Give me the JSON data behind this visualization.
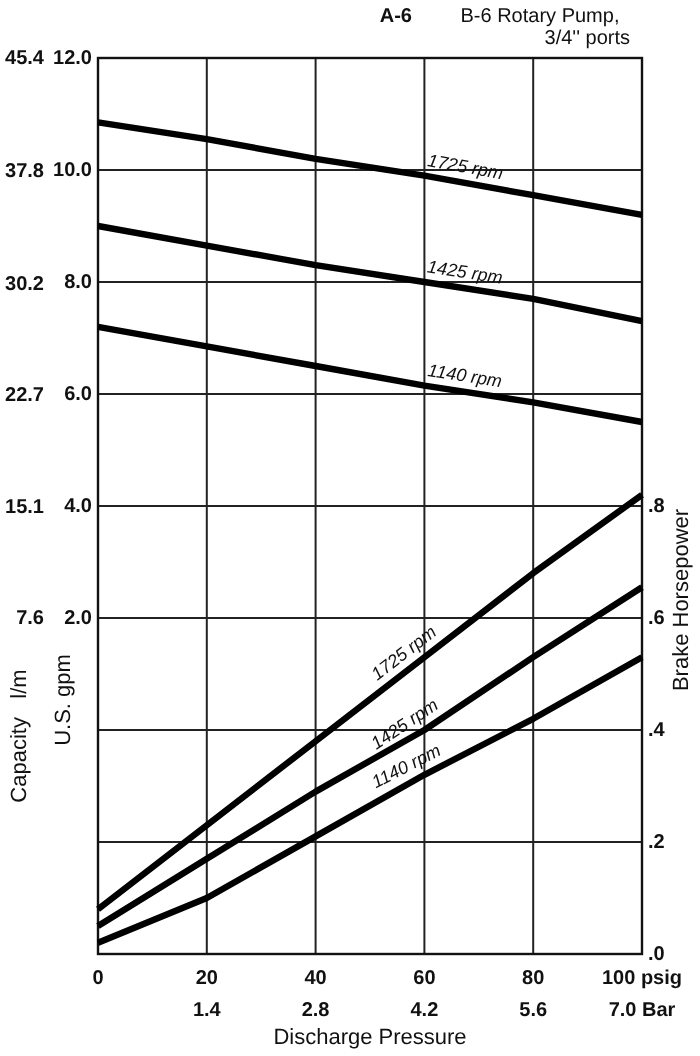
{
  "chart_data": {
    "type": "line",
    "title": "A-6",
    "subtitle": "B-6 Rotary Pump,\n3/4'' ports",
    "xlabel": "Discharge Pressure",
    "ylabel": "U.S. gpm",
    "y2label": "Brake Horsepower",
    "y3label": "Capacity   l/m",
    "x": [
      0,
      20,
      40,
      60,
      80,
      100
    ],
    "xlim": [
      0,
      100
    ],
    "xticks": [
      0,
      20,
      40,
      60,
      80,
      {
        "value": 100,
        "label": "100 psig"
      }
    ],
    "x2lim": [
      0,
      7.0
    ],
    "x2ticks": [
      1.4,
      2.8,
      4.2,
      5.6,
      {
        "value": 7.0,
        "label": "7.0 Bar"
      }
    ],
    "ylim": [
      -4,
      12
    ],
    "yticks": [
      {
        "value": -2,
        "label": null
      },
      {
        "value": 0,
        "label": null
      },
      {
        "value": 2,
        "label": "2.0"
      },
      {
        "value": 4,
        "label": "4.0"
      },
      {
        "value": 6,
        "label": "6.0"
      },
      {
        "value": 8,
        "label": "8.0"
      },
      {
        "value": 10,
        "label": "10.0"
      },
      {
        "value": 12,
        "label": "12.0"
      }
    ],
    "y2lim": [
      0,
      1.6
    ],
    "y2ticks": [
      {
        "value": 0,
        "label": ".0"
      },
      {
        "value": 0.2,
        "label": ".2"
      },
      {
        "value": 0.4,
        "label": ".4"
      },
      {
        "value": 0.6,
        "label": ".6"
      },
      {
        "value": 0.8,
        "label": ".8"
      }
    ],
    "y3lim": [
      -15.1,
      45.4
    ],
    "y3ticks": [
      7.6,
      15.1,
      22.7,
      30.2,
      37.8,
      45.4
    ],
    "grid": true,
    "series": [
      {
        "name": "1725 rpm",
        "color": "#000000",
        "values": [
          10.85,
          10.55,
          10.2,
          9.9,
          9.55,
          9.2
        ]
      },
      {
        "name": "1425 rpm",
        "color": "#000000",
        "values": [
          9.0,
          8.65,
          8.3,
          8.0,
          7.7,
          7.3
        ]
      },
      {
        "name": "1140 rpm",
        "color": "#000000",
        "values": [
          7.2,
          6.85,
          6.5,
          6.15,
          5.85,
          5.5
        ]
      },
      {
        "name": "1725 rpm",
        "color": "#000000",
        "axis": "y2",
        "values": [
          0.08,
          0.23,
          0.38,
          0.53,
          0.68,
          0.82
        ]
      },
      {
        "name": "1425 rpm",
        "color": "#000000",
        "axis": "y2",
        "values": [
          0.05,
          0.17,
          0.29,
          0.4,
          0.53,
          0.655
        ]
      },
      {
        "name": "1140 rpm",
        "color": "#000000",
        "axis": "y2",
        "values": [
          0.02,
          0.1,
          0.21,
          0.32,
          0.42,
          0.53
        ]
      }
    ]
  }
}
